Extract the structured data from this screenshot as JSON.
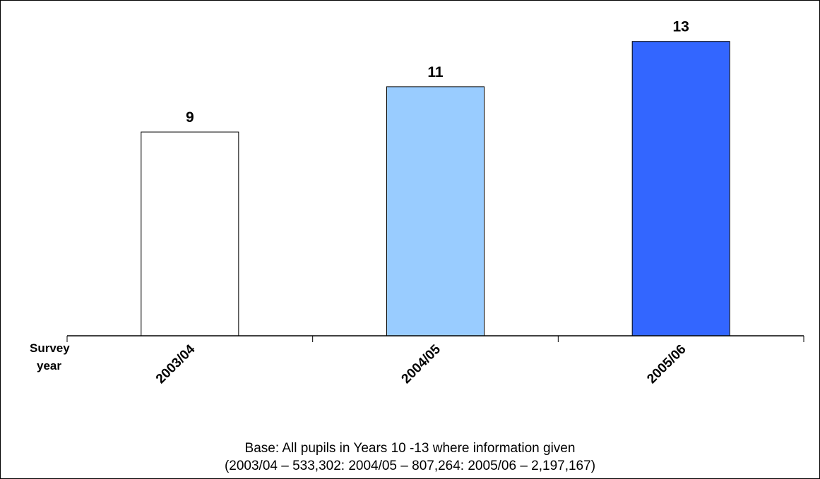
{
  "chart_data": {
    "type": "bar",
    "categories": [
      "2003/04",
      "2004/05",
      "2005/06"
    ],
    "values": [
      9,
      11,
      13
    ],
    "data_labels": [
      "9",
      "11",
      "13"
    ],
    "bar_colors": [
      "#ffffff",
      "#99ccff",
      "#3366ff"
    ],
    "bar_stroke": "#000000",
    "x_axis_label_line1": "Survey",
    "x_axis_label_line2": "year",
    "ylim": [
      0,
      14
    ],
    "grid": false,
    "legend": "none",
    "tick_label_rotation": "-45deg"
  },
  "footer": {
    "line1": "Base: All pupils in Years 10 -13 where information given",
    "line2": "(2003/04 – 533,302:  2004/05 – 807,264:  2005/06 – 2,197,167)"
  }
}
